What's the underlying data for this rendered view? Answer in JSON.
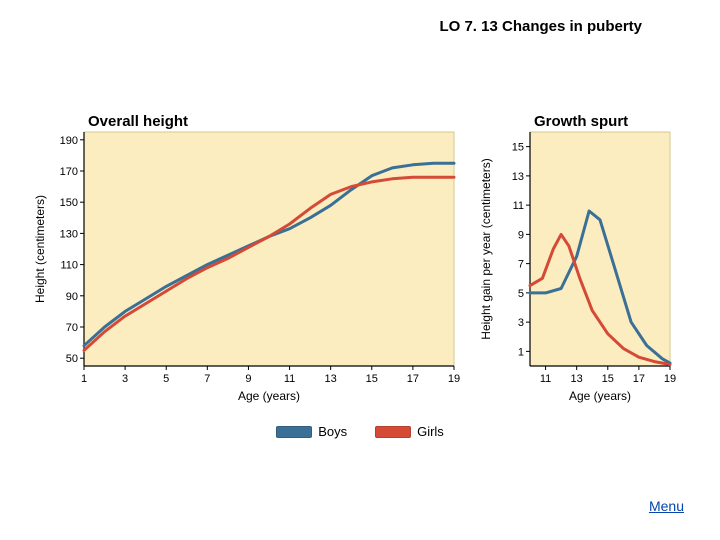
{
  "page": {
    "title": "LO 7. 13  Changes in puberty",
    "menu_label": "Menu"
  },
  "legend": {
    "series": [
      {
        "label": "Boys",
        "color": "#3a6f96"
      },
      {
        "label": "Girls",
        "color": "#d54a36"
      }
    ]
  },
  "chart_left": {
    "type": "line",
    "title": "Overall height",
    "title_fontsize": 15,
    "title_weight": "bold",
    "plot_background": "#fbedc0",
    "plot_border": "#d6c98d",
    "axis_color": "#000000",
    "label_fontsize": 12,
    "tick_fontsize": 11,
    "line_width": 3,
    "xlabel": "Age (years)",
    "ylabel": "Height (centimeters)",
    "x_ticks": [
      1,
      3,
      5,
      7,
      9,
      11,
      13,
      15,
      17,
      19
    ],
    "y_ticks": [
      50,
      70,
      90,
      110,
      130,
      150,
      170,
      190
    ],
    "xlim": [
      1,
      19
    ],
    "ylim": [
      45,
      195
    ],
    "series": [
      {
        "name": "Boys",
        "color": "#3a6f96",
        "points": [
          [
            1,
            58
          ],
          [
            2,
            70
          ],
          [
            3,
            80
          ],
          [
            4,
            88
          ],
          [
            5,
            96
          ],
          [
            6,
            103
          ],
          [
            7,
            110
          ],
          [
            8,
            116
          ],
          [
            9,
            122
          ],
          [
            10,
            128
          ],
          [
            11,
            133
          ],
          [
            12,
            140
          ],
          [
            13,
            148
          ],
          [
            14,
            158
          ],
          [
            15,
            167
          ],
          [
            16,
            172
          ],
          [
            17,
            174
          ],
          [
            18,
            175
          ],
          [
            19,
            175
          ]
        ]
      },
      {
        "name": "Girls",
        "color": "#d54a36",
        "points": [
          [
            1,
            55
          ],
          [
            2,
            67
          ],
          [
            3,
            77
          ],
          [
            4,
            85
          ],
          [
            5,
            93
          ],
          [
            6,
            101
          ],
          [
            7,
            108
          ],
          [
            8,
            114
          ],
          [
            9,
            121
          ],
          [
            10,
            128
          ],
          [
            11,
            136
          ],
          [
            12,
            146
          ],
          [
            13,
            155
          ],
          [
            14,
            160
          ],
          [
            15,
            163
          ],
          [
            16,
            165
          ],
          [
            17,
            166
          ],
          [
            18,
            166
          ],
          [
            19,
            166
          ]
        ]
      }
    ]
  },
  "chart_right": {
    "type": "line",
    "title": "Growth spurt",
    "title_fontsize": 15,
    "title_weight": "bold",
    "plot_background": "#fbedc0",
    "plot_border": "#d6c98d",
    "axis_color": "#000000",
    "label_fontsize": 12,
    "tick_fontsize": 11,
    "line_width": 3,
    "xlabel": "Age (years)",
    "ylabel": "Height gain per year (centimeters)",
    "x_ticks": [
      11,
      13,
      15,
      17,
      19
    ],
    "y_ticks": [
      1,
      3,
      5,
      7,
      9,
      11,
      13,
      15
    ],
    "xlim": [
      10,
      19
    ],
    "ylim": [
      0,
      16
    ],
    "series": [
      {
        "name": "Boys",
        "color": "#3a6f96",
        "points": [
          [
            10,
            5.0
          ],
          [
            11,
            5.0
          ],
          [
            12,
            5.3
          ],
          [
            13,
            7.5
          ],
          [
            13.8,
            10.6
          ],
          [
            14.5,
            10.0
          ],
          [
            15.5,
            6.5
          ],
          [
            16.5,
            3.0
          ],
          [
            17.5,
            1.4
          ],
          [
            18.5,
            0.5
          ],
          [
            19,
            0.2
          ]
        ]
      },
      {
        "name": "Girls",
        "color": "#d54a36",
        "points": [
          [
            10,
            5.5
          ],
          [
            10.8,
            6.0
          ],
          [
            11.5,
            8.0
          ],
          [
            12.0,
            9.0
          ],
          [
            12.5,
            8.2
          ],
          [
            13.2,
            6.0
          ],
          [
            14.0,
            3.8
          ],
          [
            15.0,
            2.2
          ],
          [
            16.0,
            1.2
          ],
          [
            17.0,
            0.6
          ],
          [
            18.0,
            0.3
          ],
          [
            19.0,
            0.1
          ]
        ]
      }
    ]
  }
}
